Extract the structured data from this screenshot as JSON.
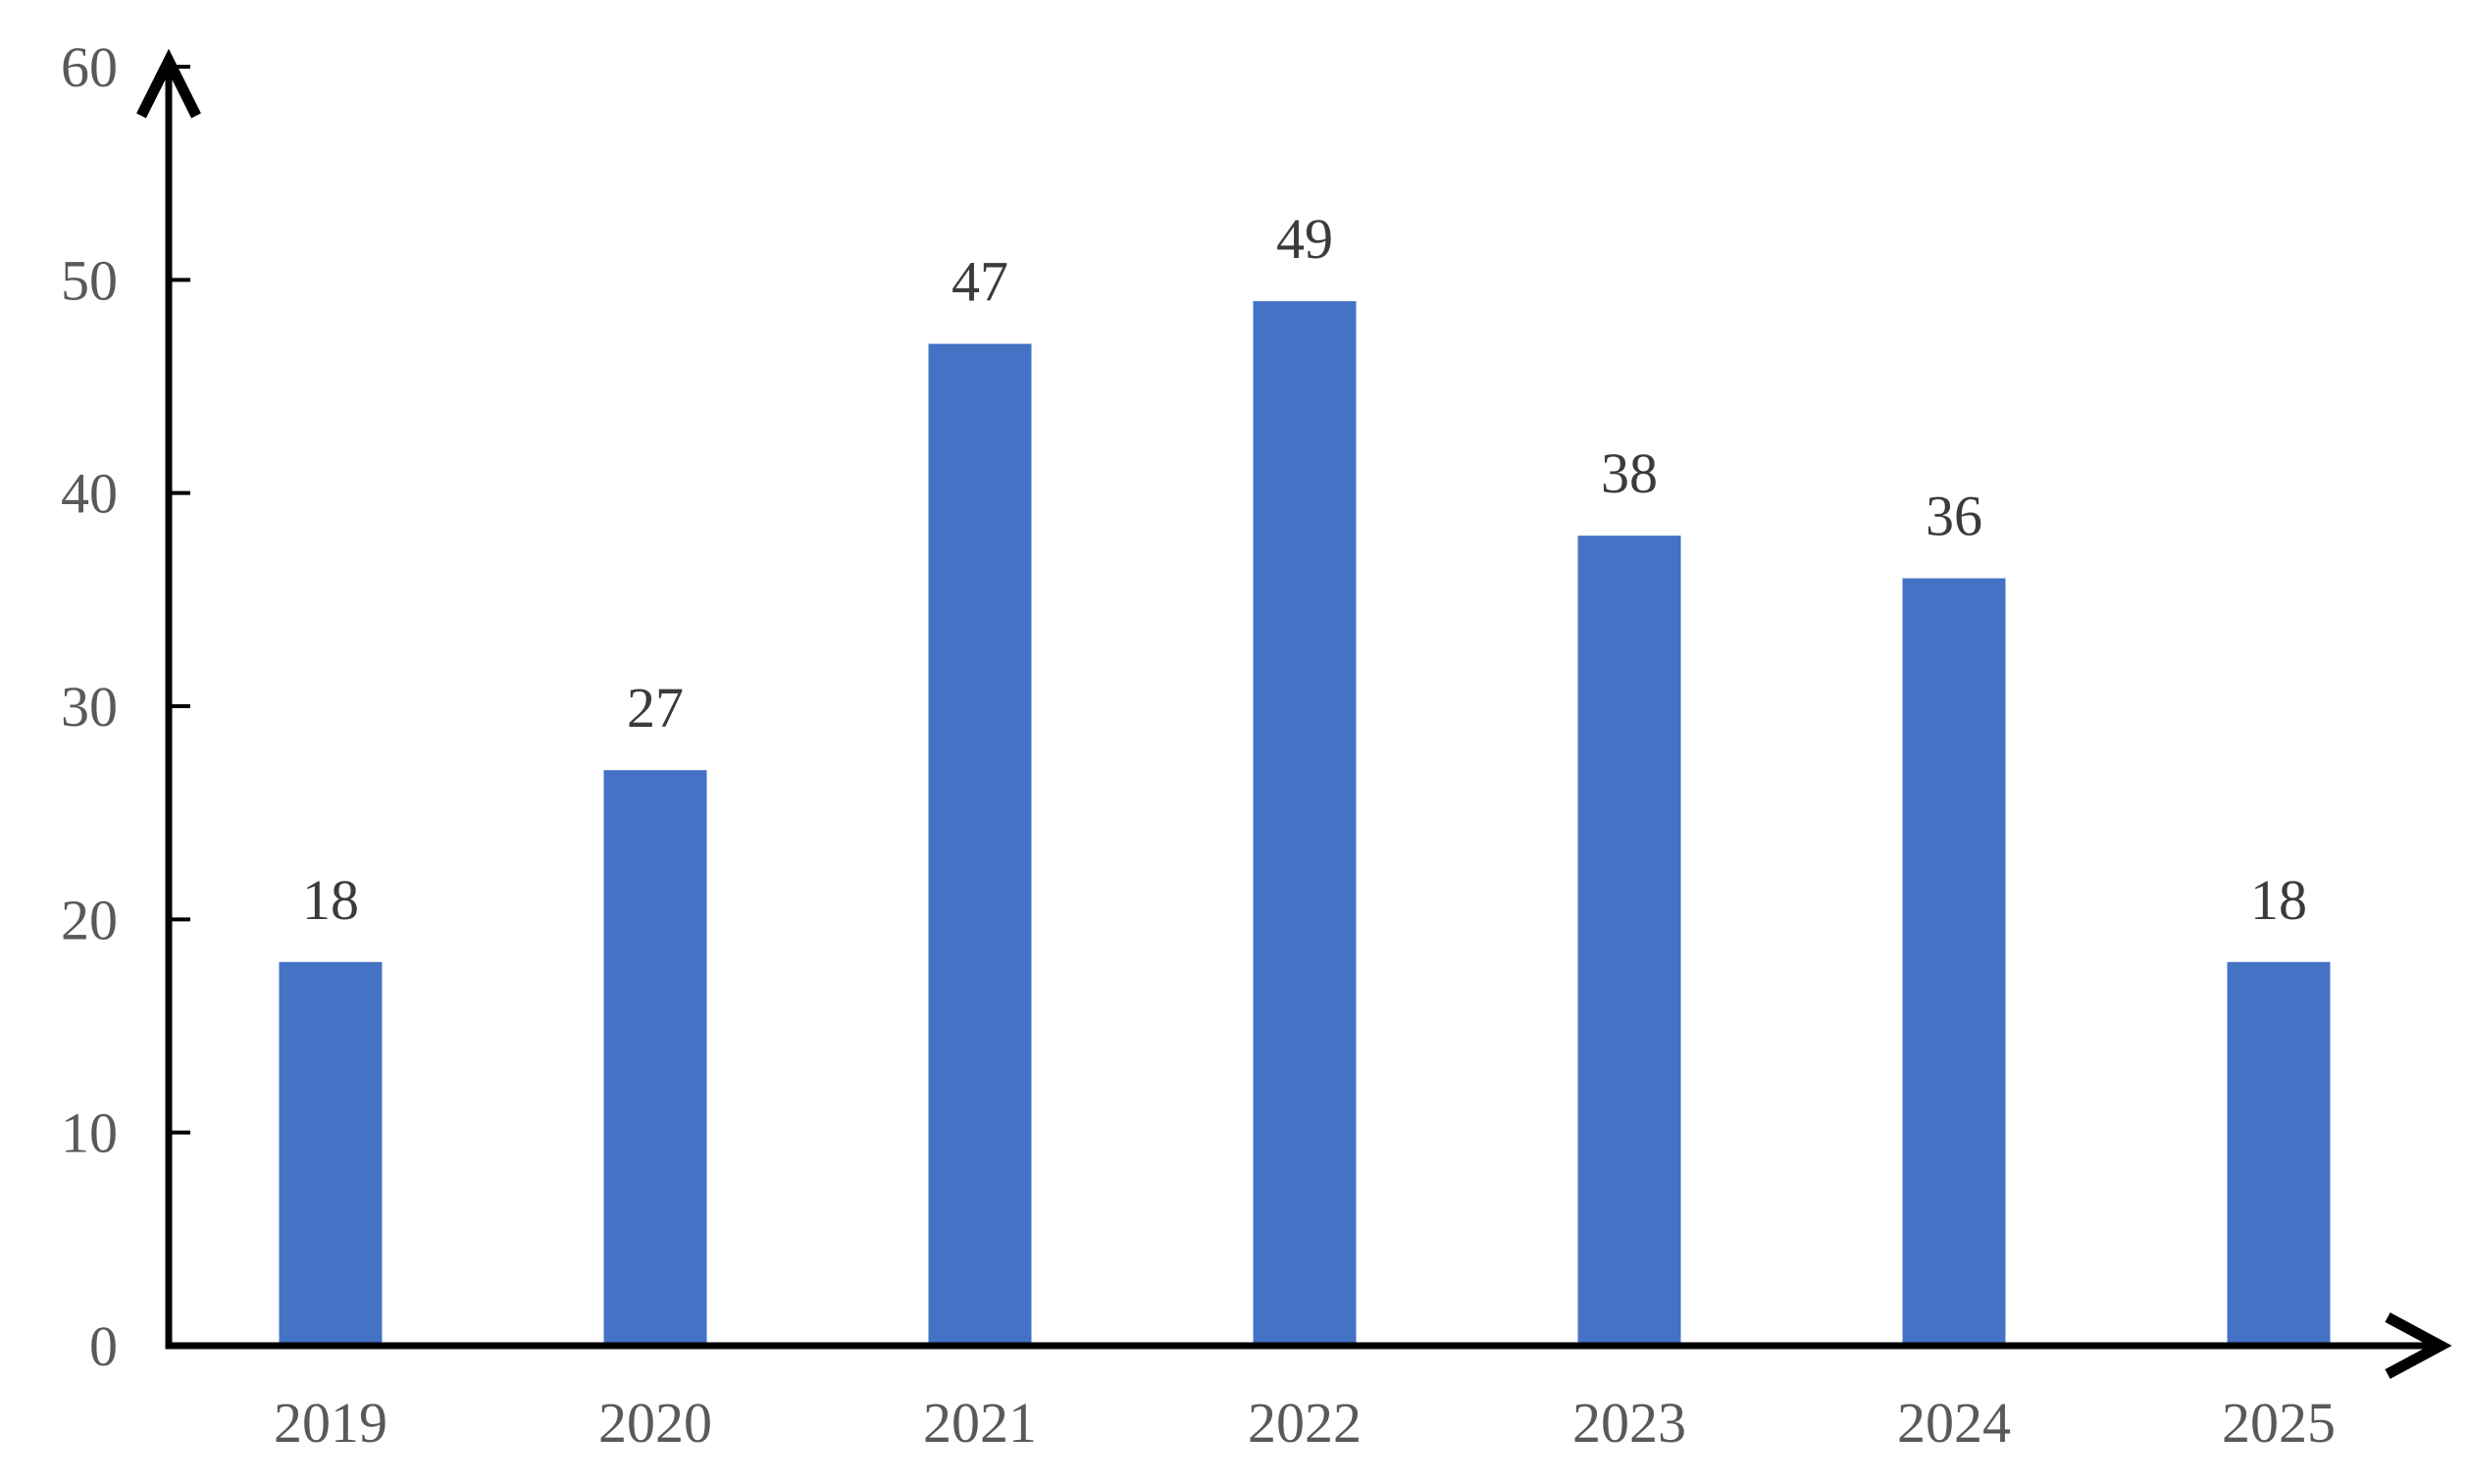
{
  "chart_data": {
    "type": "bar",
    "categories": [
      "2019",
      "2020",
      "2021",
      "2022",
      "2023",
      "2024",
      "2025"
    ],
    "values": [
      18,
      27,
      47,
      49,
      38,
      36,
      18
    ],
    "value_labels": [
      "18",
      "27",
      "47",
      "49",
      "38",
      "36",
      "18"
    ],
    "title": "",
    "xlabel": "",
    "ylabel": "",
    "ylim": [
      0,
      60
    ],
    "yticks": [
      0,
      10,
      20,
      30,
      40,
      50,
      60
    ],
    "ytick_labels": [
      "0",
      "10",
      "20",
      "30",
      "40",
      "50",
      "60"
    ],
    "grid": false,
    "legend_position": "none",
    "show_value_labels": true,
    "axis_style": "arrow-ends",
    "colors": {
      "bar": "#4472C4",
      "axis": "#000000",
      "tick_label": "#595959",
      "category_label": "#595959",
      "value_label": "#3b3b3b",
      "background": "#ffffff"
    }
  }
}
